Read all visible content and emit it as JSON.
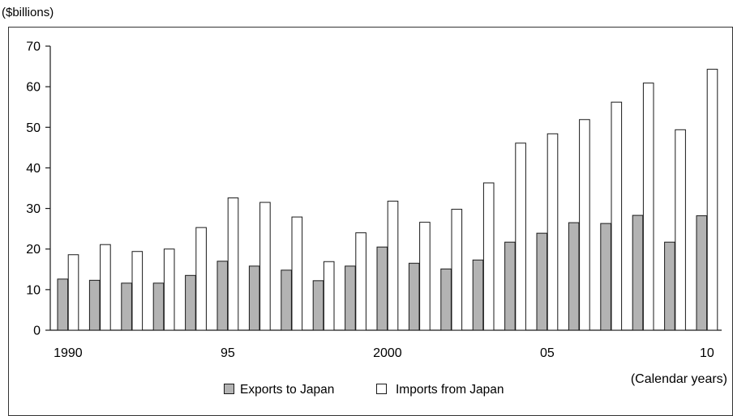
{
  "chart_data": {
    "type": "bar",
    "unit_label": "($billions)",
    "xlabel": "(Calendar years)",
    "ylim": [
      0,
      70
    ],
    "y_ticks": [
      "0",
      "10",
      "20",
      "30",
      "40",
      "50",
      "60",
      "70"
    ],
    "x_tick_labels": [
      "1990",
      "95",
      "2000",
      "05",
      "10"
    ],
    "categories": [
      "1990",
      "1991",
      "1992",
      "1993",
      "1994",
      "1995",
      "1996",
      "1997",
      "1998",
      "1999",
      "2000",
      "2001",
      "2002",
      "2003",
      "2004",
      "2005",
      "2006",
      "2007",
      "2008",
      "2009",
      "2010"
    ],
    "series": [
      {
        "name": "Exports to Japan",
        "color": "#b3b3b3",
        "values": [
          12.6,
          12.3,
          11.6,
          11.6,
          13.5,
          17.0,
          15.8,
          14.8,
          12.2,
          15.8,
          20.5,
          16.5,
          15.1,
          17.3,
          21.7,
          23.9,
          26.5,
          26.3,
          28.3,
          21.7,
          28.2
        ]
      },
      {
        "name": "Imports from Japan",
        "color": "#ffffff",
        "values": [
          18.6,
          21.1,
          19.4,
          20.0,
          25.3,
          32.6,
          31.5,
          27.9,
          16.9,
          24.0,
          31.8,
          26.6,
          29.8,
          36.3,
          46.1,
          48.4,
          51.9,
          56.2,
          60.9,
          49.4,
          64.3
        ]
      }
    ],
    "legend_position": "bottom-center",
    "grid": false
  }
}
